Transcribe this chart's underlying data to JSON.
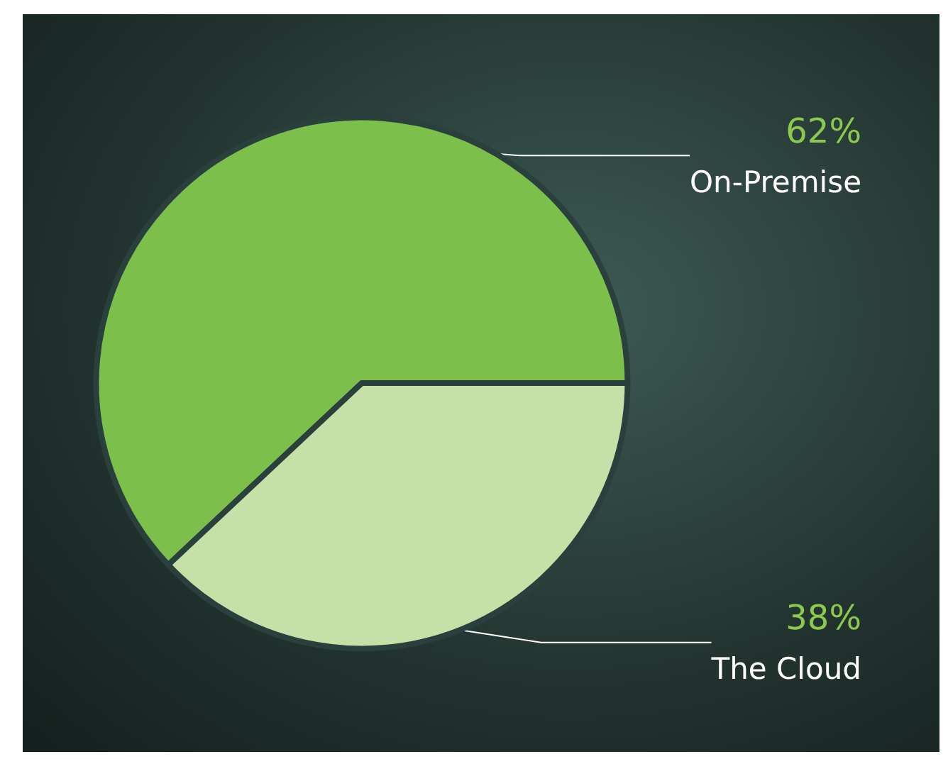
{
  "chart_data": {
    "type": "pie",
    "categories": [
      "On-Premise",
      "The Cloud"
    ],
    "values": [
      62,
      38
    ],
    "colors": [
      "#7cbf4b",
      "#c6e1a8"
    ],
    "value_labels": [
      "62%",
      "38%"
    ]
  }
}
